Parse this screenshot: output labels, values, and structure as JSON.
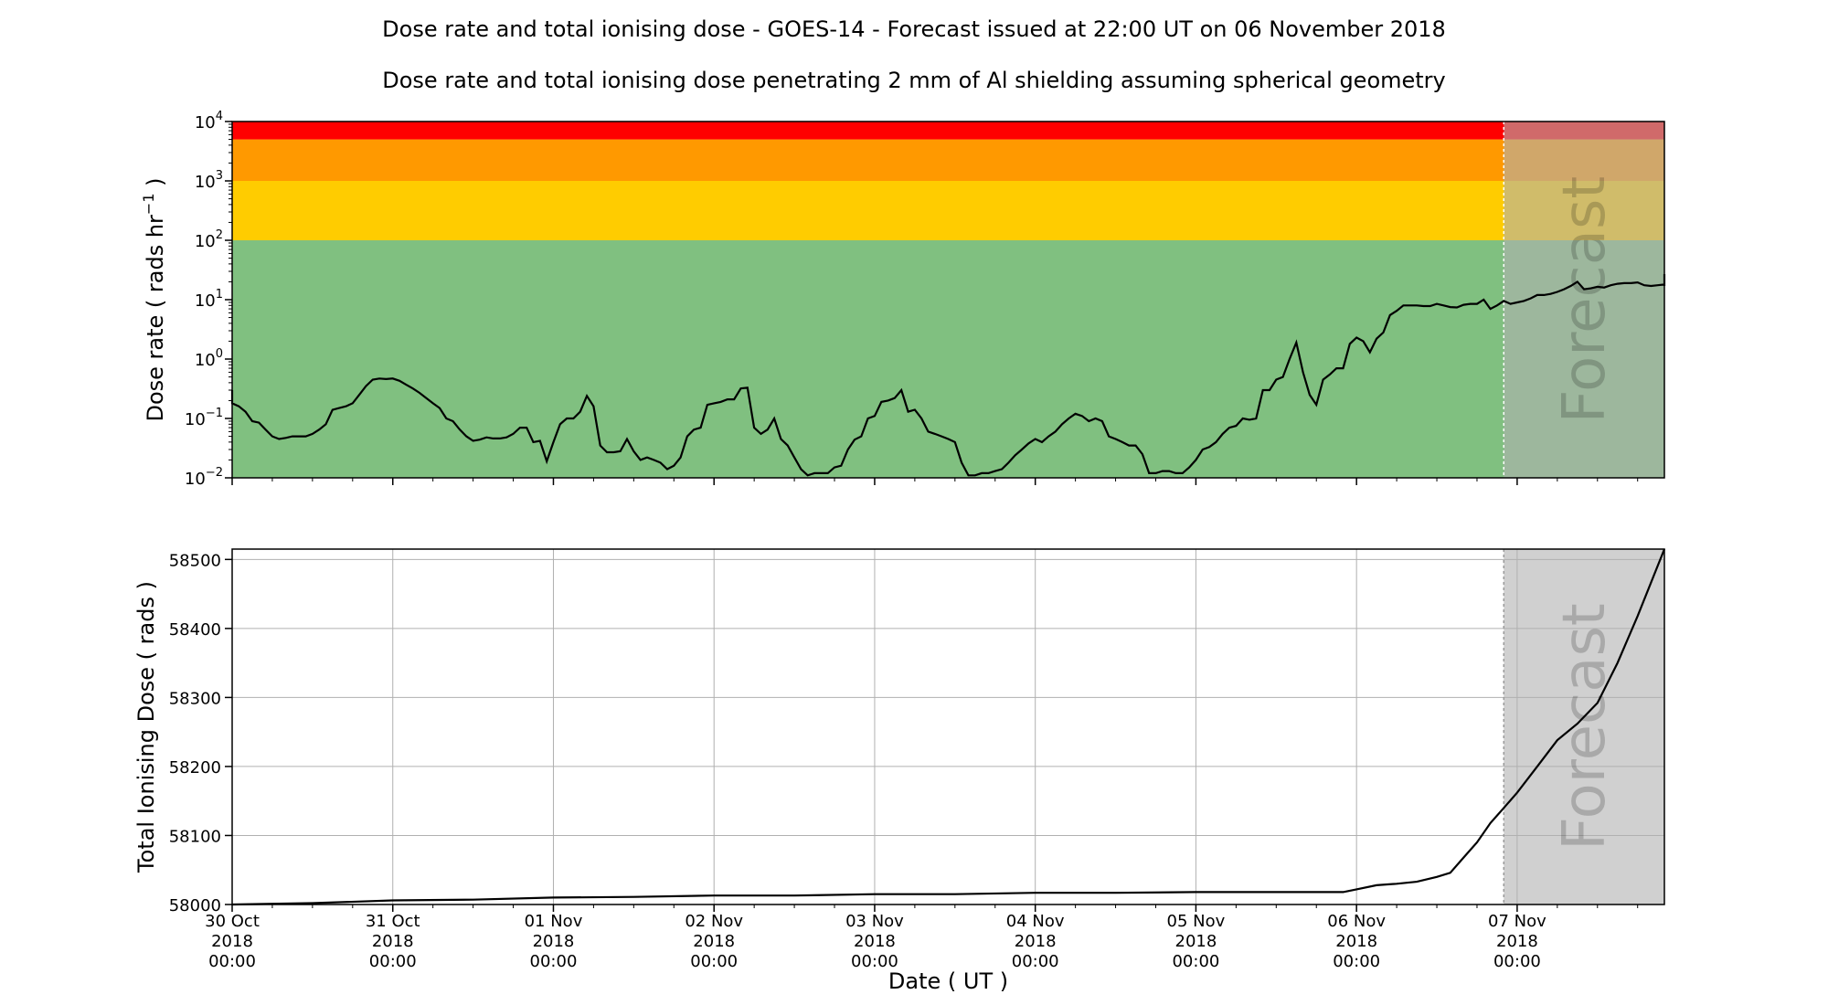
{
  "title": "Dose rate and total ionising dose - GOES-14 - Forecast issued at 22:00 UT on 06 November 2018",
  "subtitle": "Dose rate and total ionising dose penetrating 2 mm of Al shielding assuming spherical geometry",
  "forecast_label": "Forecast",
  "colors": {
    "green": "#80c080",
    "yellow": "#ffcc00",
    "orange": "#ff9900",
    "red": "#ff0000",
    "forecast_shade": "#b0b0b0",
    "line": "#000000",
    "grid": "#b0b0b0"
  },
  "chart_data": [
    {
      "type": "line",
      "name": "dose-rate",
      "ylabel_prefix": "Dose rate ( rads hr",
      "ylabel_exp": "−1",
      "ylabel_suffix": " )",
      "yscale": "log",
      "ylim": [
        0.01,
        10000
      ],
      "yticks": [
        {
          "value": 0.01,
          "base": "10",
          "exp": "−2"
        },
        {
          "value": 0.1,
          "base": "10",
          "exp": "−1"
        },
        {
          "value": 1,
          "base": "10",
          "exp": "0"
        },
        {
          "value": 10,
          "base": "10",
          "exp": "1"
        },
        {
          "value": 100,
          "base": "10",
          "exp": "2"
        },
        {
          "value": 1000,
          "base": "10",
          "exp": "3"
        },
        {
          "value": 10000,
          "base": "10",
          "exp": "4"
        }
      ],
      "xlim": [
        "2018-10-30 00:00",
        "2018-11-07 22:00"
      ],
      "forecast_start": "2018-11-06 22:00",
      "bands": [
        {
          "from": 0.01,
          "to": 100,
          "color": "#80c080"
        },
        {
          "from": 100,
          "to": 1000,
          "color": "#ffcc00"
        },
        {
          "from": 1000,
          "to": 5000,
          "color": "#ff9900"
        },
        {
          "from": 5000,
          "to": 10000,
          "color": "#ff0000"
        }
      ],
      "grid": false,
      "series": [
        {
          "start": "2018-10-29 22:00",
          "step_hours": 1,
          "values": [
            0.3,
            0.19,
            0.18,
            0.16,
            0.13,
            0.09,
            0.085,
            0.065,
            0.05,
            0.045,
            0.047,
            0.05,
            0.05,
            0.05,
            0.055,
            0.065,
            0.08,
            0.14,
            0.15,
            0.16,
            0.18,
            0.25,
            0.35,
            0.45,
            0.47,
            0.46,
            0.47,
            0.43,
            0.37,
            0.32,
            0.27,
            0.22,
            0.18,
            0.15,
            0.1,
            0.09,
            0.065,
            0.05,
            0.042,
            0.044,
            0.048,
            0.046,
            0.046,
            0.048,
            0.055,
            0.07,
            0.07,
            0.04,
            0.042,
            0.019,
            0.04,
            0.08,
            0.1,
            0.1,
            0.13,
            0.24,
            0.16,
            0.035,
            0.027,
            0.027,
            0.028,
            0.045,
            0.028,
            0.02,
            0.022,
            0.02,
            0.018,
            0.014,
            0.016,
            0.022,
            0.05,
            0.065,
            0.07,
            0.17,
            0.18,
            0.19,
            0.21,
            0.21,
            0.32,
            0.33,
            0.07,
            0.055,
            0.065,
            0.1,
            0.045,
            0.035,
            0.022,
            0.014,
            0.011,
            0.012,
            0.012,
            0.012,
            0.015,
            0.016,
            0.03,
            0.044,
            0.05,
            0.1,
            0.11,
            0.19,
            0.2,
            0.22,
            0.3,
            0.13,
            0.14,
            0.1,
            0.06,
            0.055,
            0.05,
            0.045,
            0.04,
            0.018,
            0.011,
            0.011,
            0.012,
            0.012,
            0.013,
            0.014,
            0.018,
            0.024,
            0.03,
            0.038,
            0.045,
            0.04,
            0.05,
            0.06,
            0.08,
            0.1,
            0.12,
            0.11,
            0.09,
            0.1,
            0.09,
            0.05,
            0.045,
            0.04,
            0.035,
            0.035,
            0.025,
            0.012,
            0.012,
            0.013,
            0.013,
            0.012,
            0.012,
            0.015,
            0.02,
            0.03,
            0.033,
            0.04,
            0.055,
            0.07,
            0.075,
            0.1,
            0.095,
            0.1,
            0.3,
            0.3,
            0.45,
            0.5,
            1.0,
            1.9,
            0.6,
            0.25,
            0.17,
            0.45,
            0.55,
            0.7,
            0.7,
            1.8,
            2.3,
            2.0,
            1.3,
            2.2,
            2.8,
            5.5,
            6.5,
            8.0,
            8.0,
            8.0,
            7.8,
            7.8,
            8.5,
            8.0,
            7.5,
            7.4,
            8.2,
            8.5,
            8.5,
            10.0,
            7.0,
            8.0,
            9.5,
            8.5,
            9.0,
            9.5,
            10.5,
            12.0,
            12.0,
            12.5,
            13.5,
            15.0,
            17.0,
            20.0,
            15.0,
            15.5,
            16.5,
            16.0,
            17.5,
            18.5,
            19.0,
            19.0,
            19.5,
            17.5,
            17.0,
            17.5,
            18.0,
            17.0,
            17.5,
            18.5,
            19.0,
            21.0,
            22.0,
            23.0,
            23.0,
            24.0,
            25.0,
            26.0,
            26.5,
            27.0,
            27.0,
            27.0
          ]
        }
      ]
    },
    {
      "type": "line",
      "name": "total-ionising-dose",
      "ylabel": "Total Ionising Dose ( rads )",
      "xlabel": "Date ( UT )",
      "ylim": [
        58000,
        58515
      ],
      "yticks": [
        "58000",
        "58100",
        "58200",
        "58300",
        "58400",
        "58500"
      ],
      "xlim": [
        "2018-10-30 00:00",
        "2018-11-07 22:00"
      ],
      "forecast_start": "2018-11-06 22:00",
      "grid": true,
      "xticks": [
        {
          "date": "2018-10-30 00:00",
          "line1": "30 Oct",
          "line2": "2018",
          "line3": "00:00"
        },
        {
          "date": "2018-10-31 00:00",
          "line1": "31 Oct",
          "line2": "2018",
          "line3": "00:00"
        },
        {
          "date": "2018-11-01 00:00",
          "line1": "01 Nov",
          "line2": "2018",
          "line3": "00:00"
        },
        {
          "date": "2018-11-02 00:00",
          "line1": "02 Nov",
          "line2": "2018",
          "line3": "00:00"
        },
        {
          "date": "2018-11-03 00:00",
          "line1": "03 Nov",
          "line2": "2018",
          "line3": "00:00"
        },
        {
          "date": "2018-11-04 00:00",
          "line1": "04 Nov",
          "line2": "2018",
          "line3": "00:00"
        },
        {
          "date": "2018-11-05 00:00",
          "line1": "05 Nov",
          "line2": "2018",
          "line3": "00:00"
        },
        {
          "date": "2018-11-06 00:00",
          "line1": "06 Nov",
          "line2": "2018",
          "line3": "00:00"
        },
        {
          "date": "2018-11-07 00:00",
          "line1": "07 Nov",
          "line2": "2018",
          "line3": "00:00"
        }
      ],
      "series": [
        {
          "x": [
            "2018-10-29 22:00",
            "2018-10-30 12:00",
            "2018-10-31 00:00",
            "2018-10-31 12:00",
            "2018-11-01 00:00",
            "2018-11-01 12:00",
            "2018-11-02 00:00",
            "2018-11-02 12:00",
            "2018-11-03 00:00",
            "2018-11-03 12:00",
            "2018-11-04 00:00",
            "2018-11-04 12:00",
            "2018-11-05 00:00",
            "2018-11-05 12:00",
            "2018-11-05 22:00",
            "2018-11-06 00:00",
            "2018-11-06 03:00",
            "2018-11-06 06:00",
            "2018-11-06 09:00",
            "2018-11-06 12:00",
            "2018-11-06 14:00",
            "2018-11-06 16:00",
            "2018-11-06 18:00",
            "2018-11-06 20:00",
            "2018-11-06 22:00",
            "2018-11-07 00:00",
            "2018-11-07 03:00",
            "2018-11-07 06:00",
            "2018-11-07 09:00",
            "2018-11-07 12:00",
            "2018-11-07 15:00",
            "2018-11-07 18:00",
            "2018-11-07 22:00"
          ],
          "values": [
            58000,
            58002,
            58006,
            58007,
            58010,
            58011,
            58013,
            58013,
            58015,
            58015,
            58017,
            58017,
            58018,
            58018,
            58018,
            58022,
            58028,
            58030,
            58033,
            58040,
            58046,
            58068,
            58090,
            58118,
            58140,
            58162,
            58200,
            58238,
            58262,
            58292,
            58350,
            58418,
            58515
          ]
        }
      ]
    }
  ]
}
